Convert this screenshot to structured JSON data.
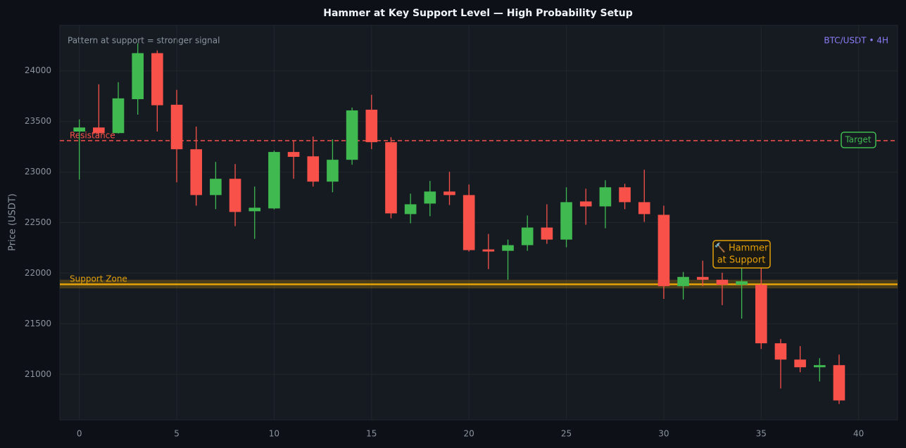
{
  "chart_data": {
    "type": "candlestick",
    "title": "Hammer at Key Support Level — High Probability Setup",
    "y_label": "Price (USDT)",
    "note": "Pattern at support = stronger signal",
    "symbol": "BTC/USDT • 4H",
    "up_color": "#3fb950",
    "down_color": "#f85149",
    "grid": true,
    "xlim": [
      -1,
      42
    ],
    "ylim": [
      20550,
      24450
    ],
    "xticks": [
      0,
      5,
      10,
      15,
      20,
      25,
      30,
      35,
      40
    ],
    "yticks": [
      21000,
      21500,
      22000,
      22500,
      23000,
      23500,
      24000
    ],
    "x": [
      0,
      1,
      2,
      3,
      4,
      5,
      6,
      7,
      8,
      9,
      10,
      11,
      12,
      13,
      14,
      15,
      16,
      17,
      18,
      19,
      20,
      21,
      22,
      23,
      24,
      25,
      26,
      27,
      28,
      29,
      30,
      31,
      32,
      33,
      34,
      35,
      36,
      37,
      38,
      39
    ],
    "open": [
      23400,
      23440,
      23385,
      23720,
      24175,
      23665,
      23225,
      22772,
      22933,
      22612,
      22640,
      23198,
      23155,
      22905,
      23121,
      23616,
      23295,
      22584,
      22688,
      22807,
      22772,
      22235,
      22221,
      22277,
      22451,
      22332,
      22709,
      22660,
      22849,
      22702,
      22577,
      21872,
      21963,
      21935,
      21886,
      21886,
      21307,
      21146,
      21070,
      21091
    ],
    "high": [
      23520,
      23867,
      23888,
      24272,
      24202,
      23812,
      23449,
      23100,
      23079,
      22856,
      23212,
      23309,
      23351,
      23323,
      23637,
      23763,
      23344,
      22786,
      22912,
      23002,
      22877,
      22388,
      22332,
      22570,
      22681,
      22849,
      22835,
      22919,
      22884,
      23023,
      22667,
      22012,
      22123,
      22005,
      22088,
      22053,
      21349,
      21279,
      21160,
      21195
    ],
    "low": [
      22925,
      23337,
      23380,
      23567,
      23400,
      22898,
      22667,
      22633,
      22465,
      22339,
      22630,
      22933,
      22856,
      22800,
      23072,
      23226,
      22542,
      22493,
      22563,
      22674,
      22214,
      22040,
      21935,
      22221,
      22290,
      22256,
      22479,
      22444,
      22633,
      22507,
      21746,
      21740,
      21872,
      21684,
      21551,
      21251,
      20860,
      21021,
      20930,
      20707
    ],
    "close": [
      23440,
      23385,
      23728,
      24175,
      23660,
      23225,
      22772,
      22933,
      22605,
      22647,
      23198,
      23150,
      22905,
      23121,
      23609,
      23295,
      22591,
      22681,
      22807,
      22772,
      22228,
      22214,
      22277,
      22451,
      22332,
      22702,
      22660,
      22849,
      22702,
      22584,
      21872,
      21963,
      21935,
      21886,
      21920,
      21307,
      21146,
      21070,
      21091,
      20742
    ],
    "resistance": {
      "value": 23310,
      "label": "Resistance",
      "target_label": "Target",
      "color": "#f85149"
    },
    "support": {
      "value": 21890,
      "low": 21850,
      "high": 21935,
      "label": "Support Zone",
      "color": "#e3a008"
    },
    "hammer_label": [
      "🔨 Hammer",
      "at Support"
    ]
  }
}
